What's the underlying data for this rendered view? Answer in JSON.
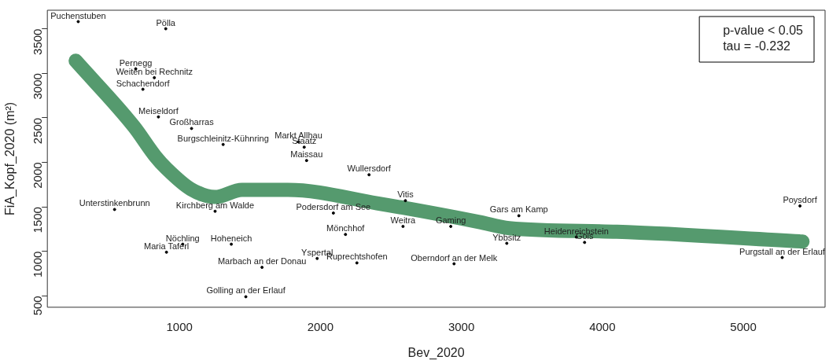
{
  "chart_data": {
    "type": "scatter",
    "xlabel": "Bev_2020",
    "ylabel": "FiA_Kopf_2020 (m²)",
    "xlim": [
      63,
      5580
    ],
    "ylim": [
      372,
      3708
    ],
    "xticks": [
      1000,
      2000,
      3000,
      4000,
      5000
    ],
    "yticks": [
      500,
      1000,
      1500,
      2000,
      2500,
      3000,
      3500
    ],
    "grid": false,
    "legend": false,
    "marker": "circle",
    "annotations": [
      "p-value < 0.05",
      "tau = -0.232"
    ],
    "series": [
      {
        "type": "scatter",
        "color": "#000000",
        "x": [
          282,
          903,
          690,
          822,
          741,
          851,
          1086,
          1310,
          1845,
          1885,
          1902,
          2345,
          2603,
          2092,
          2586,
          2925,
          2178,
          1977,
          2259,
          2948,
          1586,
          1471,
          3408,
          3322,
          3816,
          3874,
          5402,
          5276,
          540,
          908,
          1023,
          1368,
          1253
        ],
        "values": [
          3580,
          3500,
          3050,
          2950,
          2820,
          2510,
          2380,
          2200,
          2230,
          2170,
          2020,
          1860,
          1570,
          1430,
          1280,
          1280,
          1190,
          920,
          870,
          860,
          820,
          490,
          1400,
          1090,
          1160,
          1100,
          1510,
          930,
          1470,
          990,
          1080,
          1080,
          1450
        ],
        "value_labels": [
          "Puchenstuben",
          "Pölla",
          "Pernegg",
          "Weiten bei Rechnitz",
          "Schachendorf",
          "Meiseldorf",
          "Großharras",
          "Burgschleinitz-Kühnring",
          "Markt Allhau",
          "Staatz",
          "Maissau",
          "Wullersdorf",
          "Vitis",
          "Podersdorf am See",
          "Weitra",
          "Gaming",
          "Mönchhof",
          "Yspertal",
          "Ruprechtshofen",
          "Oberndorf an der Melk",
          "Marbach an der Donau",
          "Golling an der Erlauf",
          "Gars am Kamp",
          "Ybbsitz",
          "Heidenreichstein",
          "Gols",
          "Poysdorf",
          "Purgstall an der Erlauf",
          "Unterstinkenbrunn",
          "Maria Taferl",
          "Nöchling",
          "Hoheneich",
          "Kirchberg am Walde"
        ]
      },
      {
        "type": "line",
        "marker": "none",
        "color": "#559a6e",
        "x": [
          264,
          678,
          828,
          908,
          1080,
          1253,
          1443,
          1770,
          2402,
          3126,
          3339,
          4103,
          5420
        ],
        "values": [
          3140,
          2400,
          2070,
          1930,
          1700,
          1610,
          1690,
          1690,
          1540,
          1330,
          1260,
          1220,
          1110
        ]
      }
    ]
  }
}
